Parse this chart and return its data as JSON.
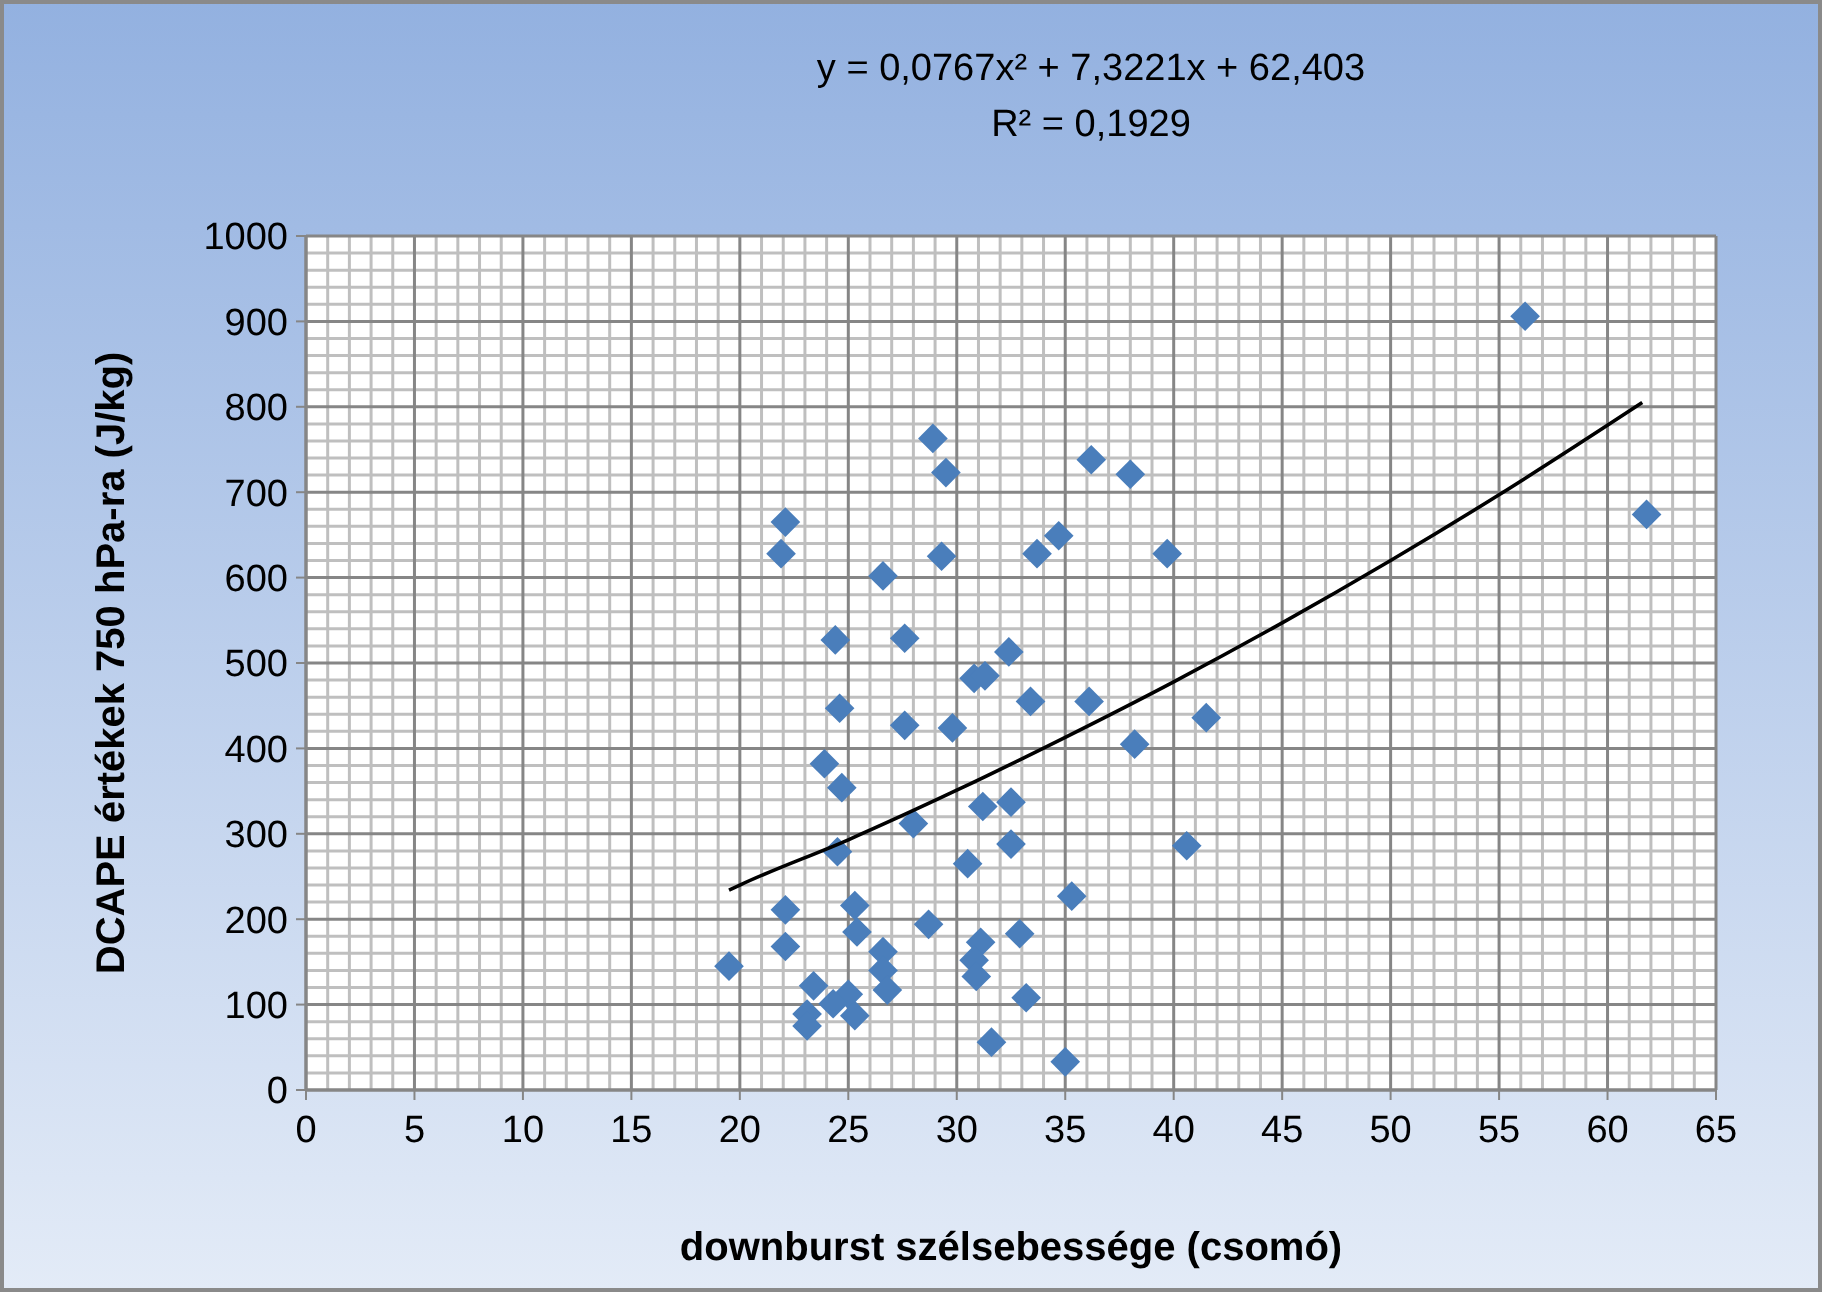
{
  "chart_data": {
    "type": "scatter",
    "title": "y = 0,0767x² + 7,3221x + 62,403",
    "subtitle": "R² = 0,1929",
    "xlabel": "downburst szélsebessége (csomó)",
    "ylabel": "DCAPE értékek  750 hPa-ra (J/kg)",
    "xlim": [
      0,
      65
    ],
    "xticks": [
      0,
      5,
      10,
      15,
      20,
      25,
      30,
      35,
      40,
      45,
      50,
      55,
      60,
      65
    ],
    "ylim": [
      0,
      1000
    ],
    "yticks": [
      0,
      100,
      200,
      300,
      400,
      500,
      600,
      700,
      800,
      900,
      1000
    ],
    "grid": true,
    "marker": "diamond",
    "series": [
      {
        "color": "#4a7ebb",
        "x": [
          28.9,
          29.5,
          22.1,
          21.9,
          29.3,
          26.6,
          36.2,
          38.0,
          33.7,
          34.7,
          39.7,
          24.4,
          27.6,
          32.4,
          30.8,
          31.3,
          24.6,
          33.4,
          36.1,
          41.5,
          27.6,
          29.8,
          38.2,
          23.9,
          24.7,
          28.0,
          31.2,
          32.5,
          32.5,
          40.6,
          24.5,
          30.5,
          35.3,
          22.1,
          25.3,
          28.7,
          25.4,
          22.1,
          32.9,
          31.1,
          30.8,
          30.9,
          26.6,
          26.6,
          26.8,
          19.5,
          23.4,
          25.0,
          24.3,
          25.3,
          23.1,
          23.1,
          33.2,
          31.6,
          35.0,
          56.2,
          61.8
        ],
        "values": [
          763,
          723,
          665,
          628,
          625,
          602,
          738,
          721,
          628,
          649,
          628,
          527,
          529,
          513,
          482,
          485,
          447,
          455,
          455,
          436,
          427,
          424,
          405,
          382,
          354,
          312,
          332,
          337,
          288,
          286,
          279,
          265,
          227,
          211,
          216,
          194,
          185,
          168,
          183,
          173,
          152,
          133,
          162,
          140,
          117,
          145,
          122,
          112,
          101,
          87,
          89,
          75,
          108,
          56,
          33,
          906,
          674
        ]
      },
      {
        "type": "line",
        "color": "#000000",
        "marker": "none",
        "x": [
          19.5,
          20,
          25,
          30,
          35,
          40,
          45,
          50,
          55,
          61.6
        ],
        "values": [
          234,
          240,
          293,
          351,
          413,
          478,
          547,
          620,
          697,
          805
        ]
      }
    ]
  }
}
